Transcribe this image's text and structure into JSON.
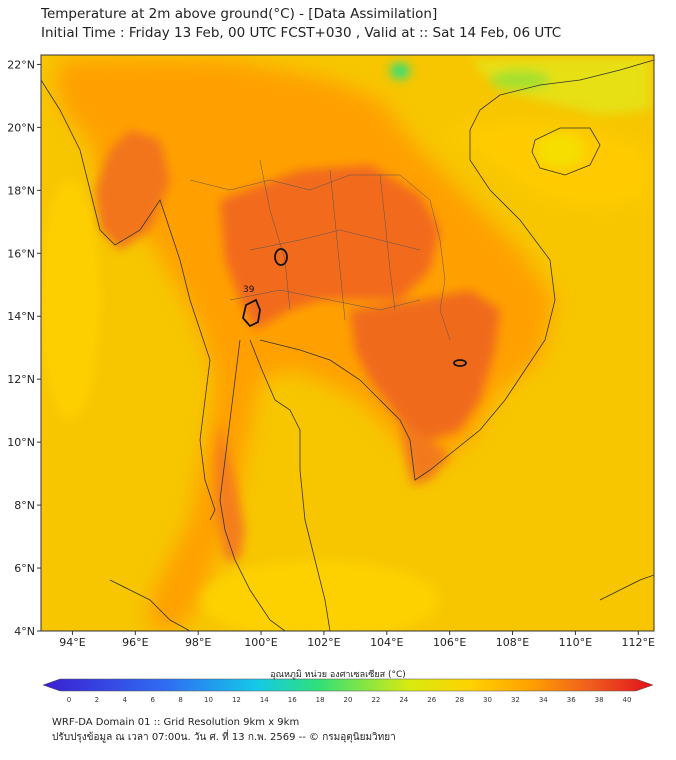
{
  "header": {
    "line1": "Temperature at 2m above ground(°C) - [Data Assimilation]",
    "line2": "Initial Time : Friday 13 Feb, 00 UTC FCST+030 , Valid at :: Sat 14 Feb, 06 UTC"
  },
  "map": {
    "lon_range": [
      93,
      112.5
    ],
    "lat_range": [
      4,
      22.3
    ],
    "lon_ticks": [
      "94°E",
      "96°E",
      "98°E",
      "100°E",
      "102°E",
      "104°E",
      "106°E",
      "108°E",
      "110°E",
      "112°E"
    ],
    "lat_ticks": [
      "22°N",
      "20°N",
      "18°N",
      "16°N",
      "14°N",
      "12°N",
      "10°N",
      "8°N",
      "6°N",
      "4°N"
    ],
    "contour_label": "39"
  },
  "colorbar": {
    "title": "อุณหภูมิ หน่วย องศาเซลเซียส (°C)",
    "ticks": [
      "0",
      "2",
      "4",
      "6",
      "8",
      "10",
      "12",
      "14",
      "16",
      "18",
      "20",
      "22",
      "24",
      "26",
      "28",
      "30",
      "32",
      "34",
      "36",
      "38",
      "40"
    ],
    "colors": {
      "0": "#3b1fd1",
      "8": "#2f6cf2",
      "14": "#14c9e8",
      "18": "#2fe07a",
      "24": "#d8ea10",
      "28": "#ffd200",
      "32": "#ffa000",
      "36": "#f05a1e",
      "40": "#e0101b"
    }
  },
  "footer": {
    "line1": "WRF-DA Domain 01 :: Grid Resolution 9km x 9km",
    "line2": "ปรับปรุงข้อมูล ณ เวลา 07:00น. วัน ศ. ที่ 13 ก.พ. 2569 -- © กรมอุตุนิยมวิทยา"
  }
}
